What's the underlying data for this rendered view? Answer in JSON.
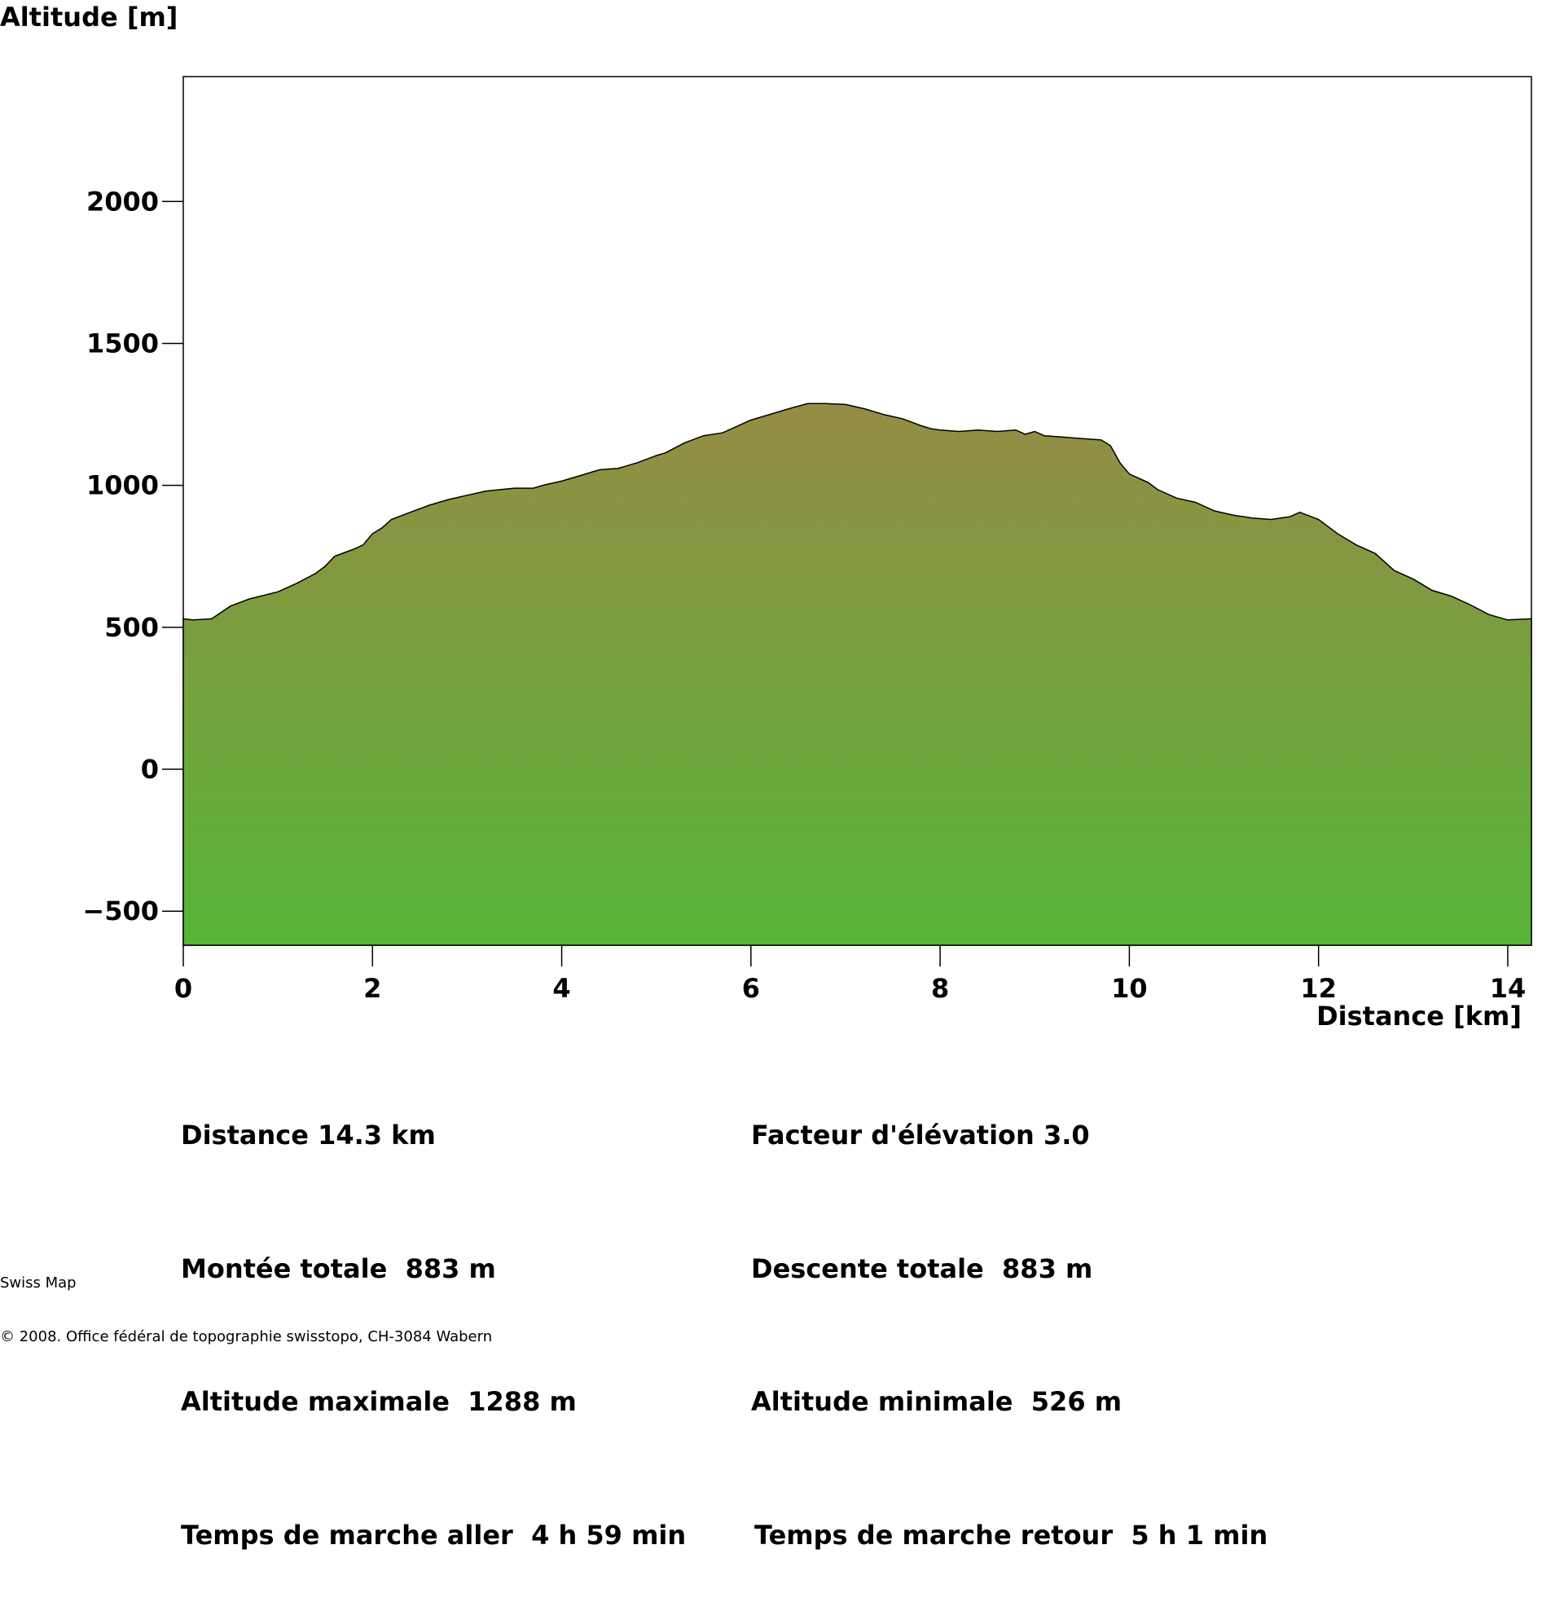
{
  "chart_data": {
    "type": "area",
    "ylabel": "Altitude [m]",
    "xlabel": "Distance [km]",
    "xlim": [
      0,
      14.25
    ],
    "ylim": [
      -620,
      2440
    ],
    "x_ticks": [
      0,
      2,
      4,
      6,
      8,
      10,
      12,
      14
    ],
    "y_ticks": [
      -500,
      0,
      500,
      1000,
      1500,
      2000
    ],
    "fill_gradient": {
      "top": "#958c45",
      "bottom": "#57b537"
    },
    "outline_color": "#000000",
    "grid": false,
    "series": [
      {
        "x": [
          0,
          0.1,
          0.3,
          0.5,
          0.7,
          1.0,
          1.2,
          1.4,
          1.5,
          1.6,
          1.8,
          1.9,
          2.0,
          2.1,
          2.2,
          2.4,
          2.6,
          2.8,
          3.0,
          3.2,
          3.5,
          3.7,
          3.8,
          4.0,
          4.2,
          4.4,
          4.6,
          4.8,
          5.0,
          5.1,
          5.3,
          5.5,
          5.7,
          5.9,
          6.0,
          6.2,
          6.4,
          6.6,
          6.8,
          7.0,
          7.2,
          7.4,
          7.6,
          7.8,
          7.9,
          8.0,
          8.2,
          8.4,
          8.6,
          8.8,
          8.9,
          9.0,
          9.1,
          9.3,
          9.5,
          9.7,
          9.8,
          9.9,
          10.0,
          10.2,
          10.3,
          10.5,
          10.7,
          10.9,
          11.1,
          11.3,
          11.5,
          11.7,
          11.8,
          12.0,
          12.2,
          12.4,
          12.6,
          12.8,
          13.0,
          13.2,
          13.4,
          13.6,
          13.8,
          14.0,
          14.25
        ],
        "y": [
          530,
          526,
          530,
          575,
          600,
          625,
          655,
          690,
          715,
          750,
          775,
          790,
          830,
          850,
          880,
          905,
          930,
          950,
          965,
          980,
          990,
          990,
          1000,
          1015,
          1035,
          1055,
          1060,
          1080,
          1105,
          1115,
          1150,
          1175,
          1185,
          1215,
          1230,
          1250,
          1270,
          1288,
          1288,
          1285,
          1270,
          1250,
          1235,
          1210,
          1200,
          1195,
          1190,
          1195,
          1190,
          1195,
          1180,
          1190,
          1175,
          1170,
          1165,
          1160,
          1140,
          1080,
          1040,
          1010,
          985,
          955,
          940,
          910,
          895,
          885,
          880,
          890,
          905,
          880,
          830,
          790,
          760,
          700,
          670,
          630,
          610,
          580,
          545,
          526,
          530
        ]
      }
    ]
  },
  "stats": {
    "left": [
      "Distance 14.3 km",
      "Montée totale  883 m",
      "Altitude maximale  1288 m",
      "Temps de marche aller  4 h 59 min"
    ],
    "right": [
      "Facteur d'élévation 3.0",
      "Descente totale  883 m",
      "Altitude minimale  526 m",
      "Temps de marche retour  5 h 1 min"
    ]
  },
  "footer": {
    "source": "Swiss Map",
    "copyright": "© 2008. Office fédéral de topographie swisstopo, CH-3084 Wabern"
  }
}
